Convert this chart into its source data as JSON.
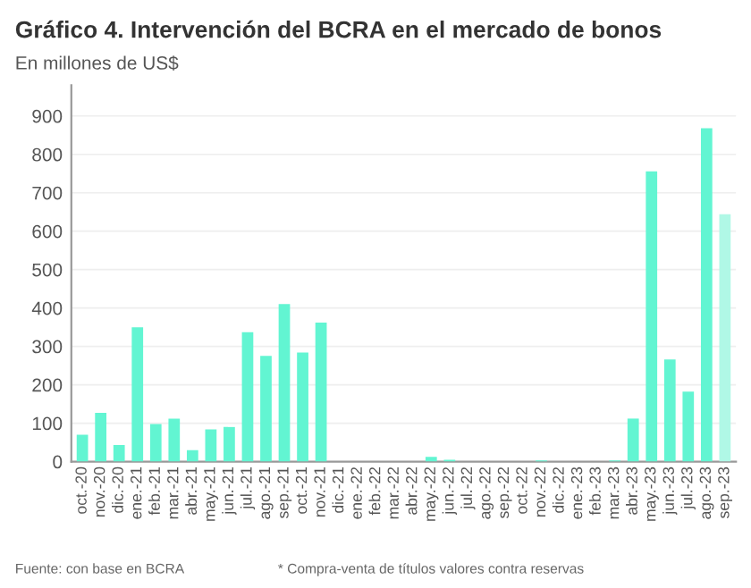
{
  "chart_data": {
    "type": "bar",
    "title": "Gráfico 4. Intervención del BCRA en el mercado de bonos",
    "subtitle": "En millones de US$",
    "categories": [
      "oct.-20",
      "nov.-20",
      "dic.-20",
      "ene.-21",
      "feb.-21",
      "mar.-21",
      "abr.-21",
      "may.-21",
      "jun.-21",
      "jul.-21",
      "ago.-21",
      "sep.-21",
      "oct.-21",
      "nov.-21",
      "dic.-21",
      "ene.-22",
      "feb.-22",
      "mar.-22",
      "abr.-22",
      "may.-22",
      "jun.-22",
      "jul.-22",
      "ago.-22",
      "sep.-22",
      "oct.-22",
      "nov.-22",
      "dic.-22",
      "ene.-23",
      "feb.-23",
      "mar.-23",
      "abr.-23",
      "may.-23",
      "jun.-23",
      "jul.-23",
      "ago.-23",
      "sep.-23"
    ],
    "values": [
      70,
      127,
      43,
      350,
      98,
      112,
      30,
      84,
      90,
      337,
      275,
      410,
      284,
      362,
      0,
      0,
      0,
      0,
      0,
      12,
      5,
      0,
      0,
      0,
      0,
      3,
      0,
      0,
      0,
      3,
      112,
      756,
      266,
      182,
      868,
      644
    ],
    "colors": [
      "#62f5d2",
      "#62f5d2",
      "#62f5d2",
      "#62f5d2",
      "#62f5d2",
      "#62f5d2",
      "#62f5d2",
      "#62f5d2",
      "#62f5d2",
      "#62f5d2",
      "#62f5d2",
      "#62f5d2",
      "#62f5d2",
      "#62f5d2",
      "#62f5d2",
      "#62f5d2",
      "#62f5d2",
      "#62f5d2",
      "#62f5d2",
      "#62f5d2",
      "#62f5d2",
      "#62f5d2",
      "#62f5d2",
      "#62f5d2",
      "#62f5d2",
      "#62f5d2",
      "#62f5d2",
      "#62f5d2",
      "#62f5d2",
      "#62f5d2",
      "#62f5d2",
      "#62f5d2",
      "#62f5d2",
      "#62f5d2",
      "#62f5d2",
      "#b0f8e6"
    ],
    "ylim": [
      0,
      980
    ],
    "yticks": [
      0,
      100,
      200,
      300,
      400,
      500,
      600,
      700,
      800,
      900
    ],
    "grid": "y",
    "annotations": [
      "Fuente: con base en BCRA",
      "* Compra-venta de títulos valores contra reservas"
    ]
  }
}
